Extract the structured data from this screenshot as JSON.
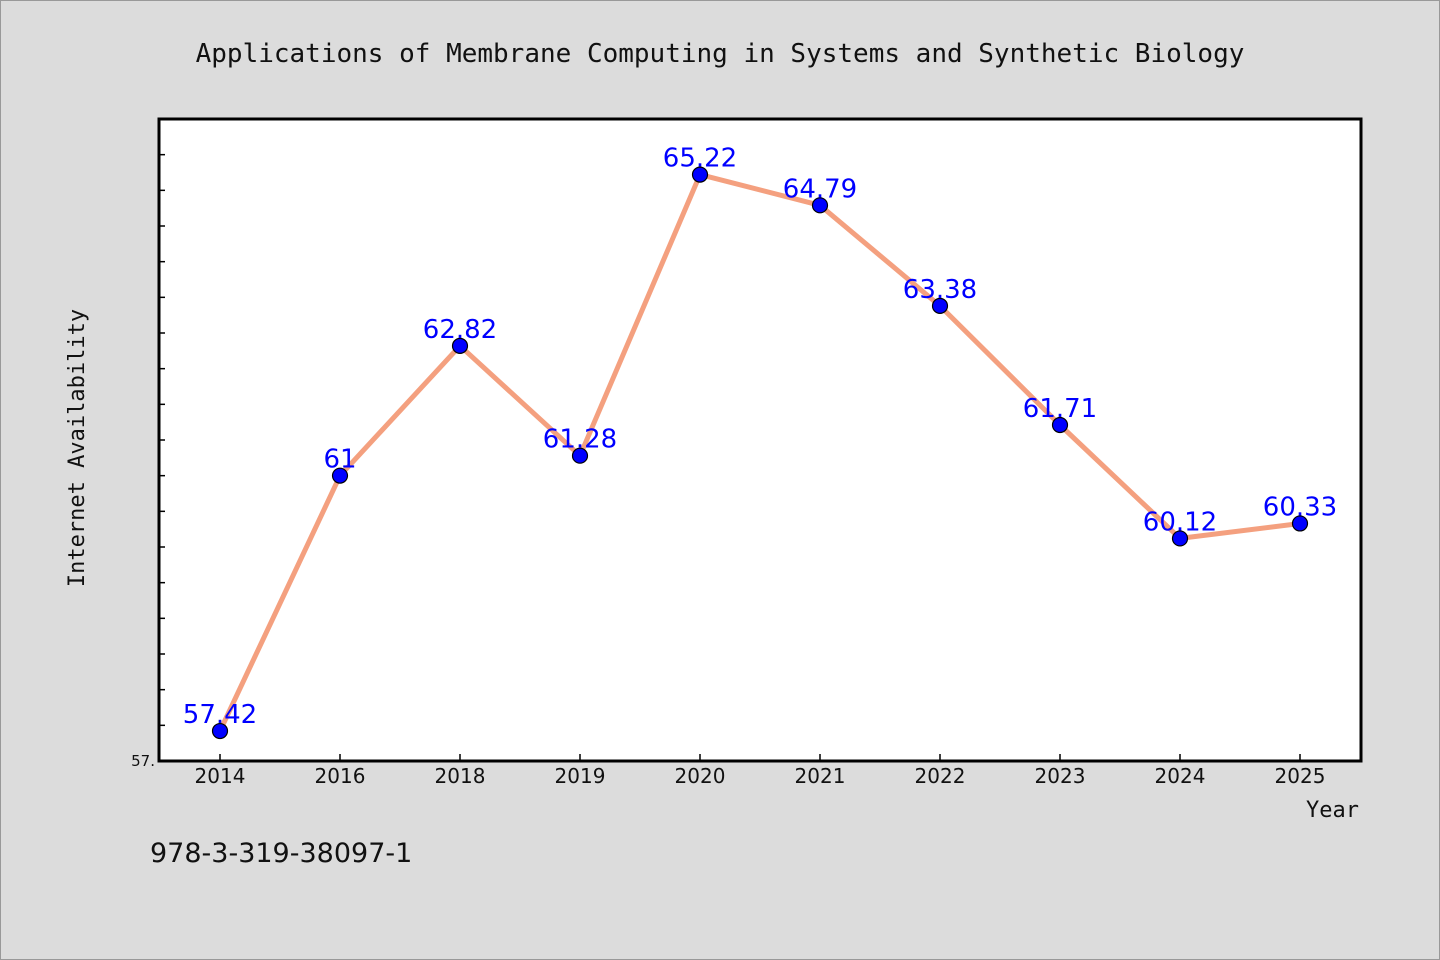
{
  "chart_data": {
    "type": "line",
    "title": "Applications of Membrane Computing in Systems and Synthetic Biology",
    "xlabel": "Year",
    "ylabel": "Internet Availability",
    "categories": [
      "2014",
      "2016",
      "2018",
      "2019",
      "2020",
      "2021",
      "2022",
      "2023",
      "2024",
      "2025"
    ],
    "values": [
      57.42,
      61,
      62.82,
      61.28,
      65.22,
      64.79,
      63.38,
      61.71,
      60.12,
      60.33
    ],
    "data_labels": [
      "57.42",
      "61",
      "62.82",
      "61.28",
      "65.22",
      "64.79",
      "63.38",
      "61.71",
      "60.12",
      "60.33"
    ],
    "ylim": [
      57.0,
      66.0
    ],
    "y_tick_labels": [
      "57."
    ],
    "grid": false,
    "legend": "none",
    "line_color": "#f4a07f",
    "marker_color": "#0000ff",
    "label_color": "#0000ff"
  },
  "footer": {
    "isbn": "978-3-319-38097-1"
  }
}
